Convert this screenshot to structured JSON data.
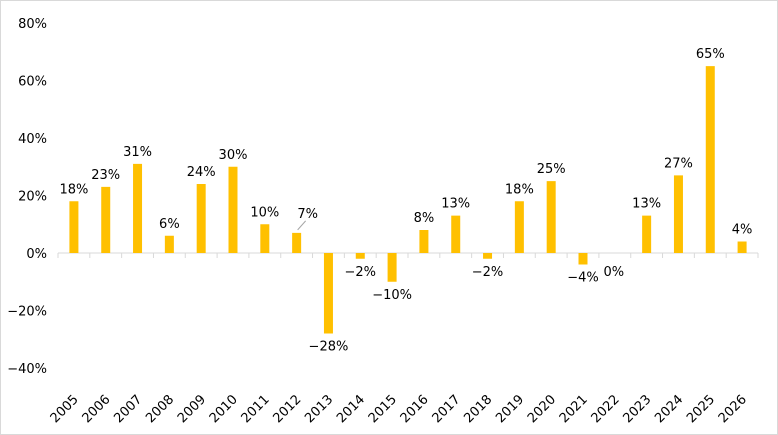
{
  "chart_data": {
    "type": "bar",
    "categories": [
      "2005",
      "2006",
      "2007",
      "2008",
      "2009",
      "2010",
      "2011",
      "2012",
      "2013",
      "2014",
      "2015",
      "2016",
      "2017",
      "2018",
      "2019",
      "2020",
      "2021",
      "2022",
      "2023",
      "2024",
      "2025",
      "2026"
    ],
    "values": [
      18,
      23,
      31,
      6,
      24,
      30,
      10,
      7,
      -28,
      -2,
      -10,
      8,
      13,
      -2,
      18,
      25,
      -4,
      0,
      13,
      27,
      65,
      4
    ],
    "data_labels": [
      "18%",
      "23%",
      "31%",
      "6%",
      "24%",
      "30%",
      "10%",
      "7%",
      "−28%",
      "−2%",
      "−10%",
      "8%",
      "13%",
      "−2%",
      "18%",
      "25%",
      "−4%",
      "0%",
      "13%",
      "27%",
      "65%",
      "4%"
    ],
    "ylim": [
      -40,
      80
    ],
    "yticks": [
      80,
      60,
      40,
      20,
      0,
      -20,
      -40
    ],
    "ytick_labels": [
      "80%",
      "60%",
      "40%",
      "20%",
      "0%",
      "−20%",
      "−40%"
    ],
    "title": "",
    "xlabel": "",
    "ylabel": "",
    "grid": false,
    "legend": "none",
    "colors": {
      "bar": "#FFC000",
      "axis": "#D9D9D9",
      "text": "#000000"
    }
  }
}
